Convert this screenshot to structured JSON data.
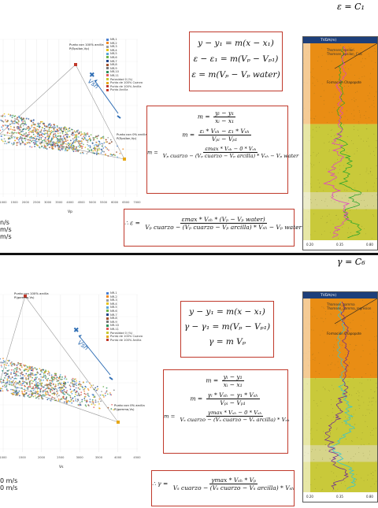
{
  "top": {
    "corner_formula": "ε = C₁",
    "legend_items": [
      "NR-1",
      "NR-2",
      "NR-3",
      "NR-4",
      "NR-5",
      "NR-6",
      "NR-7",
      "NR-8",
      "NR-9",
      "NR-10",
      "NR-11",
      "Porosidad 0 (%)",
      "Punto de 100% Cuarzo",
      "Punto de 100% Arcilla",
      "Punto Arcilla"
    ],
    "point_top_label_1": "Punto con 100% arcilla",
    "point_top_label_2": "P(Epsilon,Vp)",
    "point_right_label_1": "Punto con 0% arcilla",
    "point_right_label_2": "P(Epsilon,Vp)",
    "vsh_label": "Vsh",
    "x_axis_label": "Vp",
    "x_ticks": [
      "1000",
      "1500",
      "2000",
      "2500",
      "3000",
      "3500",
      "4000",
      "4500",
      "5000",
      "5500",
      "6000",
      "6500",
      "7000"
    ],
    "bottom_left_text": [
      "n/s",
      "m/s",
      "m/s"
    ],
    "eq1": [
      "y − y₁ = m(x − x₁)",
      "ε − ε₁ = m(Vₚ − Vₚ₁)",
      "ε = m(Vₚ − Vₚ water)"
    ],
    "eq2_m1_lhs": "m =",
    "eq2_m1_num": "yᵢ − y₁",
    "eq2_m1_den": "xᵢ − x₁",
    "eq2_m2_lhs": "m =",
    "eq2_m2_num": "εᵢ * Vₛₕ − ε₁ * Vₛₕ",
    "eq2_m2_den": "Vₚᵢ − Vₚ₁",
    "eq2_m3_lhs": "m =",
    "eq2_m3_num": "εmax * Vₛₕ − 0 * Vₛₕ",
    "eq2_m3_den": "Vₚ cuarzo − (Vₚ cuarzo − Vₚ arcilla) * Vₛₕ − Vₚ water",
    "eq3_lhs": "∴ ε =",
    "eq3_num": "εmax * Vₛₕ * (Vₚ − Vₚ water)",
    "eq3_den": "Vₚ cuarzo − (Vₚ cuarzo − Vₚ arcilla) * Vₛₕ − Vₚ water",
    "log_header": "TVDA(m)",
    "log_labels": [
      "Thomsen_epsilon",
      "Thomsen_epsilon_Calc"
    ],
    "log_formation": "Formación Chapopote",
    "log_scale": [
      "0.20",
      "0.35",
      "0.80"
    ]
  },
  "bottom": {
    "corner_formula": "γ = C₆",
    "legend_items": [
      "NR-1",
      "NR-2",
      "NR-3",
      "NR-4",
      "NR-5",
      "NR-6",
      "NR-7",
      "NR-8",
      "NR-9",
      "NR-10",
      "NR-11",
      "Porosidad 0 (%)",
      "Punto de 100% Cuarzo",
      "Punto de 100% Arcilla"
    ],
    "point_top_label_1": "Punto con 100% arcilla",
    "point_top_label_2": "P(gamma,Vs)",
    "point_right_label_1": "Punto con 0% arcilla",
    "point_right_label_2": "P(gamma,Vs)",
    "vsh_label": "Vsh",
    "x_axis_label": "Vs",
    "x_ticks": [
      "1000",
      "1500",
      "2000",
      "2500",
      "3000",
      "3500",
      "4000",
      "4500"
    ],
    "bottom_left_text": [
      "0 m/s",
      "0 m/s"
    ],
    "eq1": [
      "y − y₁ = m(x − x₁)",
      "γ − γ₁ = m(Vₚ − Vₚ₁)",
      "γ = m Vₚ"
    ],
    "eq2_m1_lhs": "m =",
    "eq2_m1_num": "yᵢ − y₁",
    "eq2_m1_den": "xᵢ − x₁",
    "eq2_m2_lhs": "m =",
    "eq2_m2_num": "γᵢ * Vₛₕ − γ₁ * Vₛₕ",
    "eq2_m2_den": "Vₚᵢ − Vₚ₁",
    "eq2_m3_lhs": "m =",
    "eq2_m3_num": "γmax * Vₛₕ − 0 * Vₛₕ",
    "eq2_m3_den": "Vₛ cuarzo − (Vₛ cuarzo − Vₛ arcilla) * Vₛₕ",
    "eq3_lhs": "∴ γ =",
    "eq3_num": "γmax * Vₛₕ * Vₚ",
    "eq3_den": "Vₛ cuarzo − (Vₛ cuarzo − Vₛ arcilla) * Vₛₕ",
    "log_header": "TVDA(m)",
    "log_labels": [
      "Thomsen_gamma",
      "Thomsen_gamma_regresion"
    ],
    "log_formation": "Formación Chapopote",
    "log_scale": [
      "0.20",
      "0.35",
      "0.80"
    ]
  },
  "colors": {
    "frame": "#c0392b",
    "sand": "#e98d14",
    "shale": "#c9c93a",
    "eps_green": "#27a52a",
    "eps_pink": "#e040c8",
    "gam_cyan": "#31c6d6",
    "gam_purple": "#6a2398",
    "arrow_blue": "#2e6db4"
  }
}
